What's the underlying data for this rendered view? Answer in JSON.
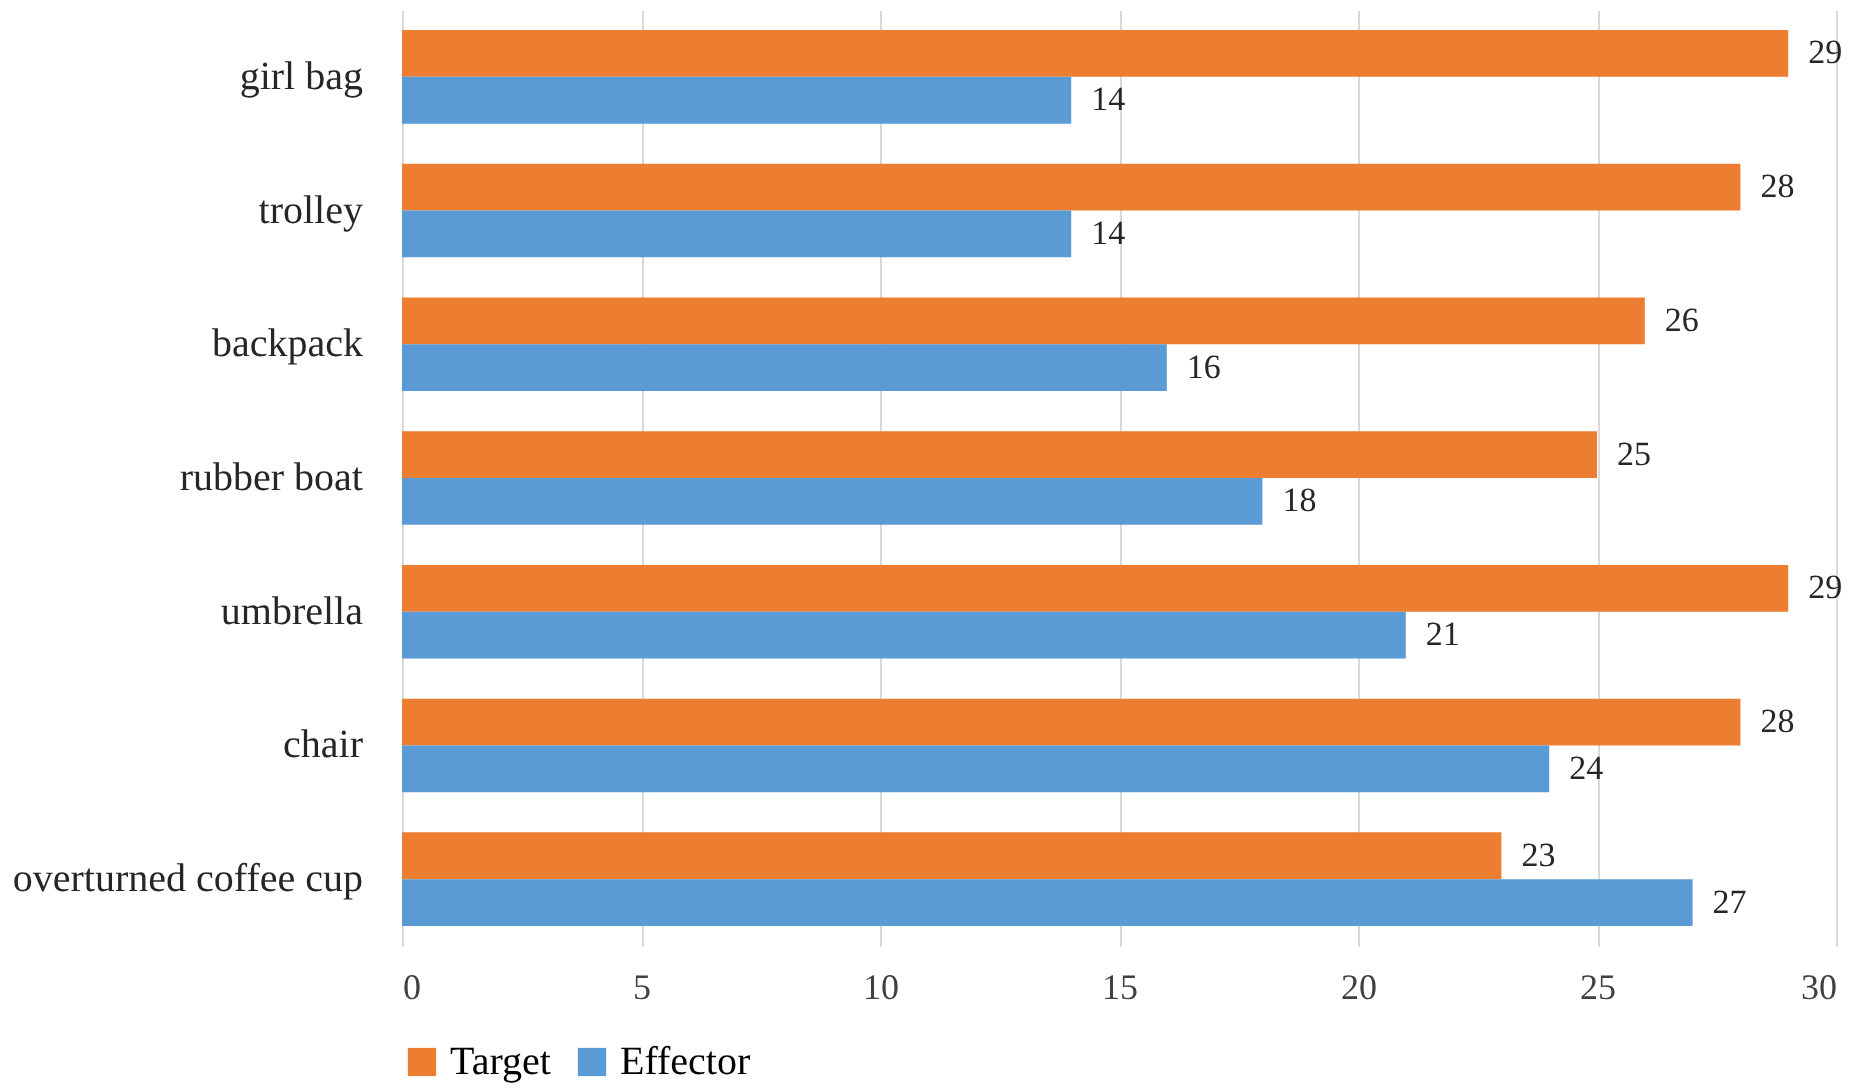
{
  "chart_data": {
    "type": "bar",
    "orientation": "horizontal",
    "categories": [
      "girl bag",
      "trolley",
      "backpack",
      "rubber boat",
      "umbrella",
      "chair",
      "overturned coffee cup"
    ],
    "series": [
      {
        "name": "Target",
        "color": "#ed7d31",
        "values": [
          29,
          28,
          26,
          25,
          29,
          28,
          23
        ]
      },
      {
        "name": "Effector",
        "color": "#5b9bd5",
        "values": [
          14,
          14,
          16,
          18,
          21,
          24,
          27
        ]
      }
    ],
    "xlim": [
      0,
      30
    ],
    "xticks": [
      0,
      5,
      10,
      15,
      20,
      25,
      30
    ],
    "grid": "x",
    "legend": "bottom",
    "data_labels": true
  }
}
